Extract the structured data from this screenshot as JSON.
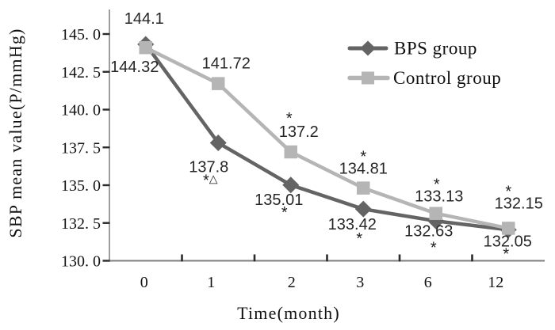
{
  "chart_data": {
    "type": "line",
    "title": "",
    "xlabel": "Time(month)",
    "ylabel": "SBP mean value(P/mmHg)",
    "x_categories": [
      "0",
      "1",
      "2",
      "3",
      "6",
      "12"
    ],
    "ylim": [
      130,
      145
    ],
    "grid": false,
    "legend_position": "inside-top-right",
    "y_ticks": [
      {
        "label": "145. 0",
        "value": 145.0
      },
      {
        "label": "142. 5",
        "value": 142.5
      },
      {
        "label": "140. 0",
        "value": 140.0
      },
      {
        "label": "137. 5",
        "value": 137.5
      },
      {
        "label": "135. 0",
        "value": 135.0
      },
      {
        "label": "132. 5",
        "value": 132.5
      },
      {
        "label": "130. 0",
        "value": 130.0
      }
    ],
    "series": [
      {
        "name": "BPS group",
        "marker": "diamond",
        "color": "#646464",
        "values": [
          144.32,
          137.8,
          135.01,
          133.42,
          132.63,
          132.05
        ],
        "labels": [
          "144.32",
          "137.8",
          "135.01",
          "133.42",
          "132.63",
          "132.05"
        ],
        "annotations": [
          "",
          "*△",
          "*",
          "*",
          "*",
          "*"
        ],
        "label_offsets": [
          [
            -14,
            28
          ],
          [
            -12,
            30
          ],
          [
            -15,
            18
          ],
          [
            -14,
            19
          ],
          [
            -9,
            12
          ],
          [
            -1,
            14
          ]
        ],
        "annotation_offsets": [
          null,
          [
            -10,
            46
          ],
          [
            -8,
            33
          ],
          [
            -5,
            36
          ],
          [
            -3,
            32
          ],
          [
            -3,
            29
          ]
        ]
      },
      {
        "name": "Control group",
        "marker": "square",
        "color": "#b5b5b5",
        "values": [
          144.1,
          141.72,
          137.2,
          134.81,
          133.13,
          132.15
        ],
        "labels": [
          "144.1",
          "141.72",
          "137.2",
          "134.81",
          "133.13",
          "132.15"
        ],
        "annotations": [
          "",
          "",
          "*",
          "*",
          "*",
          "*"
        ],
        "label_offsets": [
          [
            -2,
            -37
          ],
          [
            10,
            -26
          ],
          [
            10,
            -26
          ],
          [
            0,
            -25
          ],
          [
            4,
            -22
          ],
          [
            13,
            -32
          ]
        ],
        "annotation_offsets": [
          null,
          null,
          [
            -2,
            -44
          ],
          [
            0,
            -41
          ],
          [
            1,
            -38
          ],
          [
            0,
            -48
          ]
        ]
      }
    ],
    "x_label_dx": [
      -2,
      -9,
      1,
      -4,
      -10,
      -16
    ]
  }
}
